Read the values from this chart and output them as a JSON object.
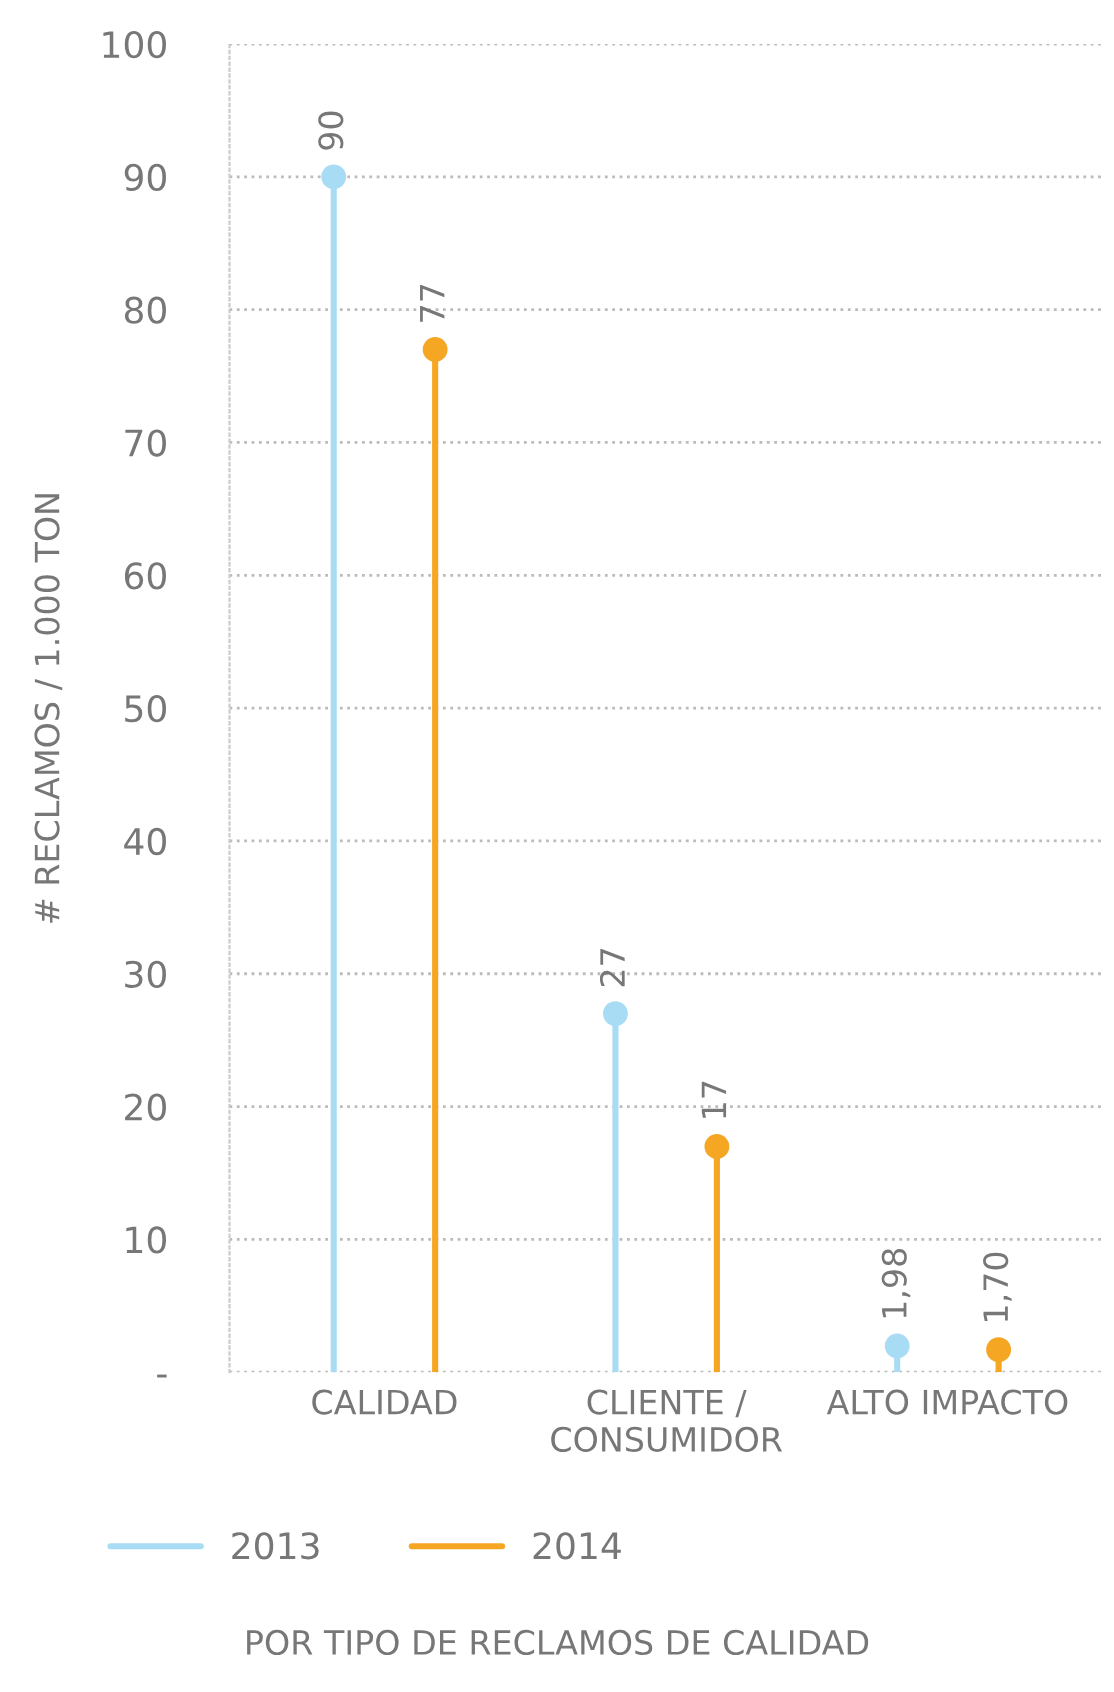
{
  "chart_data": {
    "type": "lollipop",
    "annotations": [
      "POR TIPO DE RECLAMOS DE CALIDAD"
    ],
    "ylabel": "# RECLAMOS / 1.000 TON",
    "categories": [
      "CALIDAD",
      "CLIENTE /\nCONSUMIDOR",
      "ALTO IMPACTO"
    ],
    "series": [
      {
        "name": "2013",
        "color": "#a8dcf5",
        "values": [
          90,
          27,
          1.98
        ],
        "value_labels": [
          "90",
          "27",
          "1,98"
        ]
      },
      {
        "name": "2014",
        "color": "#f5a623",
        "values": [
          77,
          17,
          1.7
        ],
        "value_labels": [
          "77",
          "17",
          "1,70"
        ]
      }
    ],
    "ylim": [
      0,
      100
    ],
    "yticks": [
      {
        "value": 0,
        "label": "-"
      },
      10,
      20,
      30,
      40,
      50,
      60,
      70,
      80,
      90,
      100
    ],
    "grid": "y",
    "legend": "bottom left",
    "marker": "circle",
    "line_style": "solid"
  }
}
